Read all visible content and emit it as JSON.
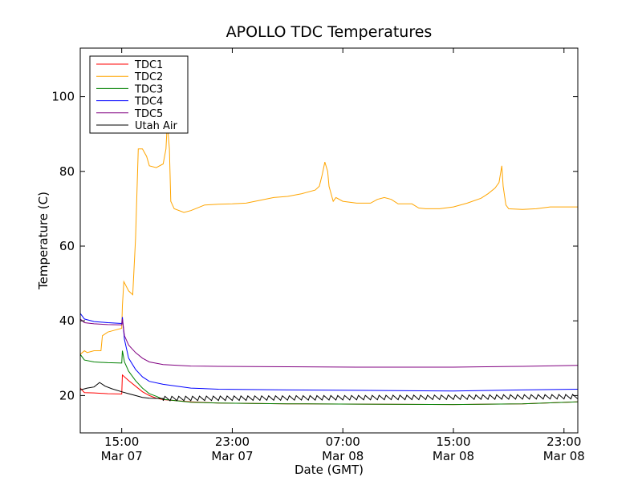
{
  "chart_data": {
    "type": "line",
    "title": "APOLLO TDC Temperatures",
    "xlabel": "Date (GMT)",
    "ylabel": "Temperature (C)",
    "xlim": [
      0,
      36
    ],
    "ylim": [
      10,
      113
    ],
    "grid": false,
    "legend_position": "top-left",
    "x_unit": "hours since Mar 07 12:00 GMT",
    "x_ticks": [
      {
        "value": 3,
        "time": "15:00",
        "date": "Mar 07"
      },
      {
        "value": 11,
        "time": "23:00",
        "date": "Mar 07"
      },
      {
        "value": 19,
        "time": "07:00",
        "date": "Mar 08"
      },
      {
        "value": 27,
        "time": "15:00",
        "date": "Mar 08"
      },
      {
        "value": 35,
        "time": "23:00",
        "date": "Mar 08"
      }
    ],
    "y_ticks": [
      20,
      40,
      60,
      80,
      100
    ],
    "series": [
      {
        "name": "TDC1",
        "color": "#ff0000",
        "points": [
          [
            0,
            22
          ],
          [
            0.3,
            20.8
          ],
          [
            1,
            20.7
          ],
          [
            2,
            20.5
          ],
          [
            3,
            20.4
          ],
          [
            3.05,
            25.5
          ],
          [
            3.5,
            24
          ],
          [
            4,
            22.5
          ],
          [
            4.5,
            21
          ],
          [
            5,
            20
          ],
          [
            5.5,
            19.3
          ],
          [
            6,
            18.9
          ],
          [
            8,
            18.3
          ],
          [
            10,
            18
          ],
          [
            15,
            17.8
          ],
          [
            20,
            17.7
          ],
          [
            27,
            17.6
          ],
          [
            32,
            17.8
          ],
          [
            36,
            18.3
          ]
        ]
      },
      {
        "name": "TDC2",
        "color": "#ffa500",
        "points": [
          [
            0,
            31
          ],
          [
            0.3,
            32
          ],
          [
            0.5,
            31.5
          ],
          [
            1,
            32
          ],
          [
            1.5,
            32
          ],
          [
            1.6,
            36
          ],
          [
            2,
            37
          ],
          [
            2.5,
            37.5
          ],
          [
            3,
            38
          ],
          [
            3.05,
            44
          ],
          [
            3.15,
            50.5
          ],
          [
            3.5,
            48
          ],
          [
            3.8,
            47
          ],
          [
            4,
            62
          ],
          [
            4.2,
            86
          ],
          [
            4.5,
            86
          ],
          [
            4.8,
            84
          ],
          [
            5,
            81.5
          ],
          [
            5.5,
            81
          ],
          [
            6,
            82
          ],
          [
            6.2,
            86
          ],
          [
            6.3,
            93
          ],
          [
            6.45,
            86
          ],
          [
            6.55,
            72
          ],
          [
            6.8,
            70
          ],
          [
            7.5,
            69
          ],
          [
            8,
            69.5
          ],
          [
            9,
            71
          ],
          [
            10,
            71.2
          ],
          [
            11,
            71.3
          ],
          [
            12,
            71.5
          ],
          [
            14,
            73
          ],
          [
            15,
            73.3
          ],
          [
            16,
            74
          ],
          [
            17,
            75
          ],
          [
            17.3,
            76
          ],
          [
            17.5,
            79
          ],
          [
            17.7,
            82.5
          ],
          [
            17.9,
            80
          ],
          [
            18,
            76
          ],
          [
            18.3,
            72
          ],
          [
            18.5,
            73
          ],
          [
            19,
            72
          ],
          [
            20,
            71.5
          ],
          [
            21,
            71.5
          ],
          [
            21.5,
            72.5
          ],
          [
            22,
            73
          ],
          [
            22.5,
            72.5
          ],
          [
            23,
            71.3
          ],
          [
            24,
            71.3
          ],
          [
            24.5,
            70.2
          ],
          [
            25,
            70
          ],
          [
            26,
            70
          ],
          [
            27,
            70.5
          ],
          [
            28,
            71.5
          ],
          [
            29,
            72.8
          ],
          [
            29.5,
            74
          ],
          [
            30,
            75.5
          ],
          [
            30.3,
            77
          ],
          [
            30.5,
            81.5
          ],
          [
            30.6,
            76
          ],
          [
            30.8,
            71
          ],
          [
            31,
            70
          ],
          [
            32,
            69.8
          ],
          [
            33,
            70
          ],
          [
            34,
            70.5
          ],
          [
            35,
            70.5
          ],
          [
            36,
            70.5
          ]
        ]
      },
      {
        "name": "TDC3",
        "color": "#008000",
        "points": [
          [
            0,
            31
          ],
          [
            0.3,
            29.5
          ],
          [
            1,
            29
          ],
          [
            2,
            28.8
          ],
          [
            3,
            28.7
          ],
          [
            3.05,
            32
          ],
          [
            3.2,
            29
          ],
          [
            3.5,
            26.5
          ],
          [
            4,
            24
          ],
          [
            4.5,
            22
          ],
          [
            5,
            20.5
          ],
          [
            5.5,
            19.8
          ],
          [
            6,
            19
          ],
          [
            8,
            18.2
          ],
          [
            10,
            18
          ],
          [
            15,
            17.8
          ],
          [
            20,
            17.7
          ],
          [
            27,
            17.6
          ],
          [
            32,
            17.8
          ],
          [
            36,
            18.3
          ]
        ]
      },
      {
        "name": "TDC4",
        "color": "#0000ff",
        "points": [
          [
            0,
            42
          ],
          [
            0.3,
            40.5
          ],
          [
            1,
            39.8
          ],
          [
            2,
            39.5
          ],
          [
            3,
            39.3
          ],
          [
            3.05,
            41
          ],
          [
            3.2,
            35
          ],
          [
            3.5,
            30
          ],
          [
            4,
            27
          ],
          [
            4.5,
            25
          ],
          [
            5,
            23.8
          ],
          [
            6,
            23
          ],
          [
            8,
            22
          ],
          [
            10,
            21.7
          ],
          [
            15,
            21.5
          ],
          [
            20,
            21.4
          ],
          [
            27,
            21.2
          ],
          [
            32,
            21.5
          ],
          [
            36,
            21.7
          ]
        ]
      },
      {
        "name": "TDC5",
        "color": "#800080",
        "points": [
          [
            0,
            40.5
          ],
          [
            0.3,
            39.5
          ],
          [
            1,
            39.2
          ],
          [
            2,
            39
          ],
          [
            3,
            38.9
          ],
          [
            3.05,
            40.5
          ],
          [
            3.2,
            36
          ],
          [
            3.5,
            33.5
          ],
          [
            4,
            31.5
          ],
          [
            4.5,
            30
          ],
          [
            5,
            29
          ],
          [
            6,
            28.3
          ],
          [
            8,
            27.9
          ],
          [
            10,
            27.8
          ],
          [
            15,
            27.7
          ],
          [
            20,
            27.6
          ],
          [
            27,
            27.6
          ],
          [
            32,
            27.8
          ],
          [
            36,
            28.1
          ]
        ]
      },
      {
        "name": "Utah Air",
        "color": "#000000",
        "points": [
          [
            0,
            21.5
          ],
          [
            0.5,
            22
          ],
          [
            1,
            22.3
          ],
          [
            1.4,
            23.5
          ],
          [
            1.8,
            22.5
          ],
          [
            2.3,
            21.8
          ],
          [
            3,
            21
          ],
          [
            3.5,
            20.5
          ],
          [
            4,
            20
          ],
          [
            4.5,
            19.5
          ],
          [
            5,
            19.3
          ],
          [
            6,
            19.2
          ],
          [
            36,
            19.7
          ]
        ],
        "oscillation": {
          "from_x": 6,
          "period_h": 0.5,
          "amplitude": 0.6
        }
      }
    ]
  }
}
